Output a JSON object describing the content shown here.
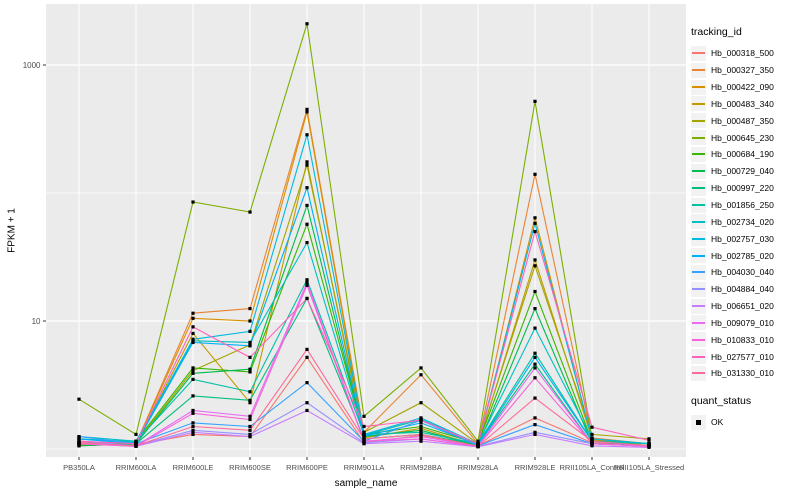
{
  "chart_data": {
    "type": "line",
    "title": "",
    "xlabel": "sample_name",
    "ylabel": "FPKM + 1",
    "y_scale": "log10",
    "ylim": [
      1,
      3000
    ],
    "grid": "on",
    "panel_bg": "#EBEBEB",
    "grid_color": "#FFFFFF",
    "axis_text_color": "#4D4D4D",
    "point_color": "#000000",
    "y_ticks": [
      {
        "label": "1000",
        "value": 1000
      },
      {
        "label": "10",
        "value": 10
      }
    ],
    "y_minor_gridline_values": [
      100,
      1
    ],
    "categories": [
      "PB350LA",
      "RRIM600LA",
      "RRIM600LE",
      "RRIM600SE",
      "RRIM600PE",
      "RRIM901LA",
      "RRIM928BA",
      "RRIM928LA",
      "RRIM928LE",
      "RRII105LA_Control",
      "RRII105LA_Stressed"
    ],
    "legend": {
      "tracking_title": "tracking_id",
      "quant_title": "quant_status",
      "quant_value": "OK",
      "position": "right"
    },
    "series": [
      {
        "name": "Hb_000318_500",
        "color": "#F8766D",
        "values": [
          1.15,
          1.08,
          1.3,
          1.25,
          5.2,
          1.12,
          1.28,
          1.06,
          1.75,
          1.12,
          1.06
        ]
      },
      {
        "name": "Hb_000327_350",
        "color": "#EA8331",
        "values": [
          1.12,
          1.1,
          11.5,
          12.5,
          450,
          1.35,
          3.8,
          1.1,
          140,
          1.22,
          1.1
        ]
      },
      {
        "name": "Hb_000422_090",
        "color": "#D89000",
        "values": [
          1.08,
          1.1,
          10.5,
          10,
          430,
          1.28,
          1.7,
          1.06,
          64,
          1.18,
          1.06
        ]
      },
      {
        "name": "Hb_000483_340",
        "color": "#C09B00",
        "values": [
          1.06,
          1.1,
          8,
          2.3,
          175,
          1.22,
          1.45,
          1.06,
          30,
          1.2,
          1.06
        ]
      },
      {
        "name": "Hb_000487_350",
        "color": "#A3A500",
        "values": [
          1.1,
          1.12,
          4.1,
          6.5,
          165,
          1.35,
          2.3,
          1.1,
          27,
          1.3,
          1.2
        ]
      },
      {
        "name": "Hb_000645_230",
        "color": "#7CAE00",
        "values": [
          2.45,
          1.3,
          85,
          71,
          2100,
          1.8,
          4.3,
          1.15,
          520,
          1.2,
          1.1
        ]
      },
      {
        "name": "Hb_000684_190",
        "color": "#39B600",
        "values": [
          1.1,
          1.15,
          4.3,
          4,
          57,
          1.3,
          1.5,
          1.1,
          17,
          1.15,
          1.1
        ]
      },
      {
        "name": "Hb_000729_040",
        "color": "#00BB4E",
        "values": [
          1.06,
          1.1,
          3.9,
          4.2,
          80,
          1.25,
          1.4,
          1.06,
          12.5,
          1.1,
          1.06
        ]
      },
      {
        "name": "Hb_000997_220",
        "color": "#00BF7D",
        "values": [
          1.1,
          1.1,
          2.6,
          2.4,
          15,
          1.2,
          1.3,
          1.08,
          4.6,
          1.1,
          1.06
        ]
      },
      {
        "name": "Hb_001856_250",
        "color": "#00C1A3",
        "values": [
          1.2,
          1.14,
          3.5,
          2.8,
          21,
          1.3,
          1.35,
          1.1,
          5.6,
          1.15,
          1.1
        ]
      },
      {
        "name": "Hb_002734_020",
        "color": "#00BFC4",
        "values": [
          1.25,
          1.15,
          7,
          6.8,
          41,
          1.28,
          1.7,
          1.1,
          8.8,
          1.2,
          1.1
        ]
      },
      {
        "name": "Hb_002757_030",
        "color": "#00BAE0",
        "values": [
          1.2,
          1.12,
          7.2,
          8.3,
          285,
          1.3,
          1.75,
          1.1,
          58,
          1.2,
          1.1
        ]
      },
      {
        "name": "Hb_002785_020",
        "color": "#00B0F6",
        "values": [
          1.2,
          1.1,
          6.8,
          6.4,
          110,
          1.26,
          1.6,
          1.08,
          5.2,
          1.15,
          1.06
        ]
      },
      {
        "name": "Hb_004030_040",
        "color": "#35A2FF",
        "values": [
          1.25,
          1.1,
          1.6,
          1.5,
          3.3,
          1.15,
          1.68,
          1.06,
          1.55,
          1.1,
          1.05
        ]
      },
      {
        "name": "Hb_004884_040",
        "color": "#9590FF",
        "values": [
          1.15,
          1.06,
          1.4,
          1.3,
          2.3,
          1.12,
          1.2,
          1.05,
          1.35,
          1.1,
          1.05
        ]
      },
      {
        "name": "Hb_006651_020",
        "color": "#C77CFF",
        "values": [
          1.1,
          1.05,
          1.35,
          1.25,
          2.0,
          1.1,
          1.15,
          1.04,
          1.3,
          1.06,
          1.03
        ]
      },
      {
        "name": "Hb_009079_010",
        "color": "#E76BF3",
        "values": [
          1.1,
          1.06,
          2.0,
          1.8,
          20,
          1.15,
          1.25,
          1.05,
          4.3,
          1.1,
          1.05
        ]
      },
      {
        "name": "Hb_010833_010",
        "color": "#FA62DB",
        "values": [
          1.1,
          1.05,
          1.9,
          1.7,
          19,
          1.15,
          1.2,
          1.05,
          3.6,
          1.1,
          1.05
        ]
      },
      {
        "name": "Hb_027577_010",
        "color": "#FF62BC",
        "values": [
          1.15,
          1.1,
          9,
          5.2,
          15,
          1.5,
          1.68,
          1.1,
          50,
          1.48,
          1.17
        ]
      },
      {
        "name": "Hb_031330_010",
        "color": "#FF6A98",
        "values": [
          1.12,
          1.06,
          1.5,
          1.4,
          6,
          1.2,
          1.3,
          1.05,
          2.5,
          1.15,
          1.06
        ]
      }
    ]
  }
}
